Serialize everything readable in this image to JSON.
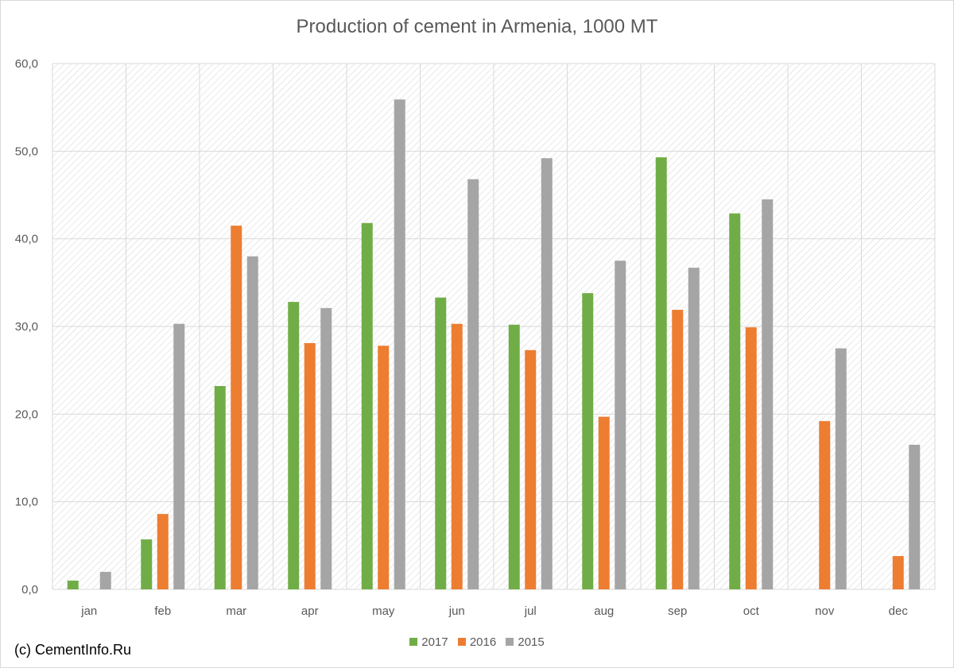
{
  "chart_data": {
    "type": "bar",
    "title": "Production of cement in Armenia, 1000 MT",
    "categories": [
      "jan",
      "feb",
      "mar",
      "apr",
      "may",
      "jun",
      "jul",
      "aug",
      "sep",
      "oct",
      "nov",
      "dec"
    ],
    "series": [
      {
        "name": "2017",
        "color": "#70ad47",
        "values": [
          1.0,
          5.7,
          23.2,
          32.8,
          41.8,
          33.3,
          30.2,
          33.8,
          49.3,
          42.9,
          null,
          null
        ]
      },
      {
        "name": "2016",
        "color": "#ed7d31",
        "values": [
          null,
          8.6,
          41.5,
          28.1,
          27.8,
          30.3,
          27.3,
          19.7,
          31.9,
          29.9,
          19.2,
          3.8
        ]
      },
      {
        "name": "2015",
        "color": "#a5a5a5",
        "values": [
          2.0,
          30.3,
          38.0,
          32.1,
          55.9,
          46.8,
          49.2,
          37.5,
          36.7,
          44.5,
          27.5,
          16.5
        ]
      }
    ],
    "yticks": [
      "0,0",
      "10,0",
      "20,0",
      "30,0",
      "40,0",
      "50,0",
      "60,0"
    ],
    "ylim": [
      0,
      60
    ],
    "xlabel": "",
    "ylabel": "",
    "grid": true,
    "legend_position": "bottom"
  },
  "credit": "(c) CementInfo.Ru"
}
